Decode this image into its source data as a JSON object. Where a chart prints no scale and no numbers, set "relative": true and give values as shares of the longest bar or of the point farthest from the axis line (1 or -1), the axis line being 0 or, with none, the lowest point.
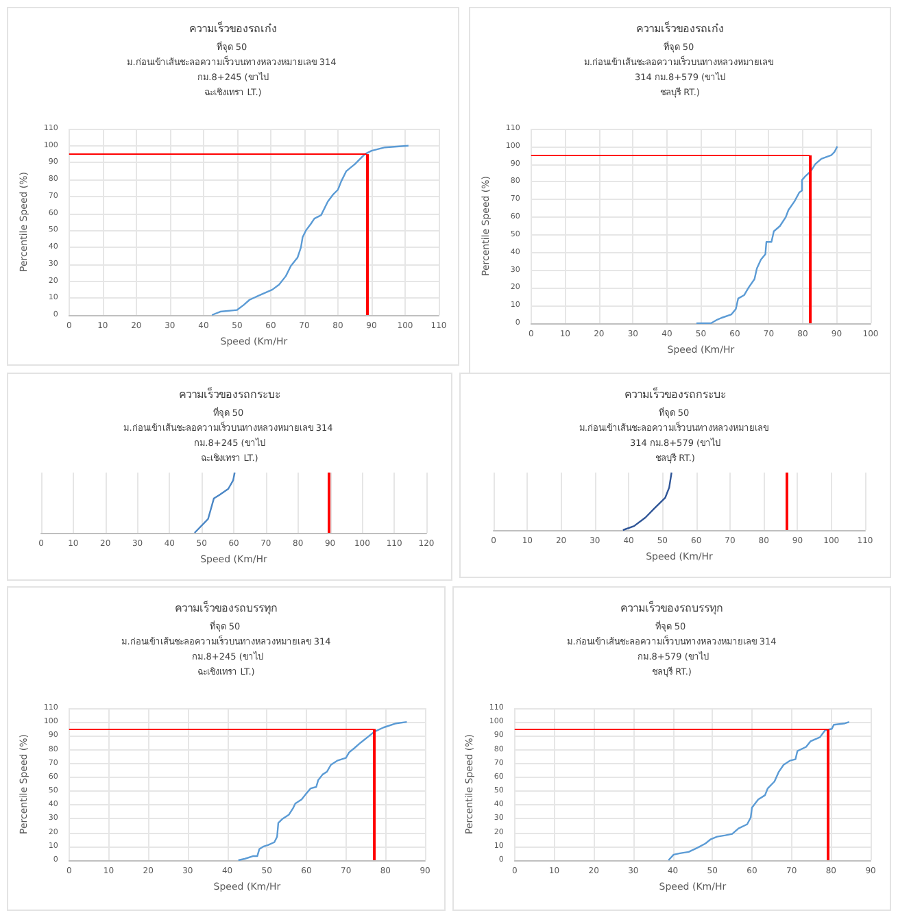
{
  "chart_data": [
    {
      "type": "line",
      "title": "ความเร็วของรถเก๋ง",
      "subtitle": "ที่จุด 50 ม.ก่อนเข้าเส้นชะลอความเร็วบนทางหลวงหมายเลข 314 กม.8+245 (ขาไป\nฉะเชิงเทรา LT.)",
      "xlabel": "Speed (Km/Hr",
      "ylabel": "Percentile Speed (%)",
      "xlim": [
        0,
        110
      ],
      "xticks": [
        0,
        10,
        20,
        30,
        40,
        50,
        60,
        70,
        80,
        90,
        100,
        110
      ],
      "ylim": [
        0,
        110
      ],
      "yticks": [
        0,
        10,
        20,
        30,
        40,
        50,
        60,
        70,
        80,
        90,
        100,
        110
      ],
      "grid": true,
      "marker": "none",
      "series": [
        {
          "color": "#5b9bd5",
          "x": [
            42.5,
            45,
            50,
            52,
            53.7,
            57,
            60.5,
            62.5,
            64.5,
            66,
            68,
            69,
            69.5,
            70.5,
            72,
            73,
            75,
            77,
            78.5,
            80,
            81,
            82.5,
            85,
            88,
            90,
            94,
            101
          ],
          "values": [
            0,
            2,
            3,
            6,
            9,
            12,
            15,
            18,
            23,
            29,
            34,
            40,
            46,
            50,
            54,
            57,
            59,
            67,
            71,
            74,
            79,
            85,
            89,
            95,
            97,
            99,
            100
          ]
        }
      ],
      "ref_lines": [
        {
          "axis": "y",
          "value": 95,
          "color": "#ff0000"
        },
        {
          "axis": "x",
          "value": 88.5,
          "color": "#ff0000"
        }
      ]
    },
    {
      "type": "line",
      "title": "ความเร็วของรถเก๋ง",
      "subtitle": "ที่จุด 50 ม.ก่อนเข้าเส้นชะลอความเร็วบนทางหลวงหมายเลข 314 กม.8+579 (ขาไป\nชลบุรี RT.)",
      "xlabel": "Speed (Km/Hr",
      "ylabel": "Percentile Speed (%)",
      "xlim": [
        0,
        100
      ],
      "xticks": [
        0,
        10,
        20,
        30,
        40,
        50,
        60,
        70,
        80,
        90,
        100
      ],
      "ylim": [
        0,
        110
      ],
      "yticks": [
        0,
        10,
        20,
        30,
        40,
        50,
        60,
        70,
        80,
        90,
        100,
        110
      ],
      "grid": true,
      "marker": "none",
      "series": [
        {
          "color": "#5b9bd5",
          "x": [
            48.7,
            53,
            54.8,
            56,
            59,
            60.3,
            61,
            62.8,
            64,
            65.8,
            66.5,
            67.7,
            69,
            69.3,
            70.8,
            71.5,
            73.3,
            75,
            75.8,
            77.6,
            79,
            79.8,
            79.8,
            80.7,
            82.4,
            83.7,
            85.5,
            88.4,
            89.4,
            90.2
          ],
          "values": [
            0,
            0,
            2,
            3,
            5,
            8,
            14,
            16,
            20,
            25,
            31,
            36,
            39,
            46,
            46,
            52,
            55,
            60,
            64,
            69,
            74,
            75,
            81,
            83,
            86,
            90,
            93,
            95,
            97,
            100
          ]
        }
      ],
      "ref_lines": [
        {
          "axis": "y",
          "value": 95,
          "color": "#ff0000"
        },
        {
          "axis": "x",
          "value": 82,
          "color": "#ff0000"
        }
      ]
    },
    {
      "type": "line",
      "title": "ความเร็วของรถกระบะ",
      "subtitle": "ที่จุด 50 ม.ก่อนเข้าเส้นชะลอความเร็วบนทางหลวงหมายเลข 314 กม.8+245 (ขาไป\nฉะเชิงเทรา LT.)",
      "xlabel": "Speed (Km/Hr",
      "relative": true,
      "xlim": [
        0,
        120
      ],
      "xticks": [
        0,
        10,
        20,
        30,
        40,
        50,
        60,
        70,
        80,
        90,
        100,
        110,
        120
      ],
      "grid": true,
      "marker": "none",
      "series": [
        {
          "color": "#4a86c5",
          "x": [
            47.8,
            52,
            53.8,
            55.6,
            58.3,
            59.8,
            60.3
          ],
          "values": [
            0,
            0.23,
            0.57,
            0.63,
            0.73,
            0.87,
            1
          ]
        }
      ],
      "ref_lines": [
        {
          "axis": "x",
          "value": 89.5,
          "color": "#ff0000"
        }
      ]
    },
    {
      "type": "line",
      "title": "ความเร็วของรถกระบะ",
      "subtitle": "ที่จุด 50 ม.ก่อนเข้าเส้นชะลอความเร็วบนทางหลวงหมายเลข 314 กม.8+579 (ขาไป\nชลบุรี RT.)",
      "xlabel": "Speed (Km/Hr",
      "relative": true,
      "xlim": [
        0,
        110
      ],
      "xticks": [
        0,
        10,
        20,
        30,
        40,
        50,
        60,
        70,
        80,
        90,
        100,
        110
      ],
      "grid": true,
      "marker": "none",
      "series": [
        {
          "color": "#2f5597",
          "x": [
            38.3,
            41.6,
            45,
            47.5,
            50.8,
            52,
            52.7
          ],
          "values": [
            0,
            0.07,
            0.22,
            0.37,
            0.56,
            0.74,
            1
          ]
        }
      ],
      "ref_lines": [
        {
          "axis": "x",
          "value": 86.6,
          "color": "#ff0000"
        }
      ]
    },
    {
      "type": "line",
      "title": "ความเร็วของรถบรรทุก",
      "subtitle": "ที่จุด 50 ม.ก่อนเข้าเส้นชะลอความเร็วบนทางหลวงหมายเลข 314 กม.8+245 (ขาไป\nฉะเชิงเทรา LT.)",
      "xlabel": "Speed (Km/Hr",
      "ylabel": "Percentile Speed (%)",
      "xlim": [
        0,
        90
      ],
      "xticks": [
        0,
        10,
        20,
        30,
        40,
        50,
        60,
        70,
        80,
        90
      ],
      "ylim": [
        0,
        110
      ],
      "yticks": [
        0,
        10,
        20,
        30,
        40,
        50,
        60,
        70,
        80,
        90,
        100,
        110
      ],
      "grid": true,
      "marker": "none",
      "series": [
        {
          "color": "#5b9bd5",
          "x": [
            42.8,
            44.4,
            46.6,
            47.6,
            48.1,
            49.2,
            50.3,
            51.9,
            52.6,
            52.9,
            54,
            55.6,
            56.7,
            57.2,
            58.8,
            59.9,
            61.1,
            62.5,
            63,
            64.1,
            65.2,
            66.2,
            67.8,
            70,
            70.8,
            72.1,
            73.7,
            75.9,
            77.2,
            79.5,
            82.7,
            85.4
          ],
          "values": [
            0,
            1,
            3,
            3,
            8,
            10,
            11,
            13,
            17,
            27,
            30,
            33,
            38,
            41,
            44,
            48,
            52,
            53,
            58,
            62,
            64,
            69,
            72,
            74,
            78,
            81,
            85,
            90,
            93,
            96,
            99,
            100
          ]
        }
      ],
      "ref_lines": [
        {
          "axis": "y",
          "value": 95,
          "color": "#ff0000"
        },
        {
          "axis": "x",
          "value": 77,
          "color": "#ff0000"
        }
      ]
    },
    {
      "type": "line",
      "title": "ความเร็วของรถบรรทุก",
      "subtitle": "ที่จุด 50 ม.ก่อนเข้าเส้นชะลอความเร็วบนทางหลวงหมายเลข 314 กม.8+579 (ขาไป\nชลบุรี RT.)",
      "xlabel": "Speed (Km/Hr",
      "ylabel": "Percentile Speed (%)",
      "xlim": [
        0,
        90
      ],
      "xticks": [
        0,
        10,
        20,
        30,
        40,
        50,
        60,
        70,
        80,
        90
      ],
      "ylim": [
        0,
        110
      ],
      "yticks": [
        0,
        10,
        20,
        30,
        40,
        50,
        60,
        70,
        80,
        90,
        100,
        110
      ],
      "grid": true,
      "marker": "none",
      "series": [
        {
          "color": "#5b9bd5",
          "x": [
            38.9,
            40.2,
            41.8,
            44,
            46.2,
            48.2,
            49.5,
            51.2,
            53.3,
            55,
            56.6,
            58.8,
            59.7,
            60,
            61.6,
            63.3,
            64,
            65.7,
            66.8,
            68,
            69.6,
            71,
            71.5,
            73.7,
            74.8,
            77.2,
            78.5,
            80.2,
            80.7,
            83.5,
            84.6
          ],
          "values": [
            0,
            4,
            5,
            6,
            9,
            12,
            15,
            17,
            18,
            19,
            23,
            26,
            31,
            38,
            44,
            47,
            52,
            57,
            64,
            69,
            72,
            73,
            79,
            82,
            86,
            89,
            94,
            95,
            98,
            99,
            100
          ]
        }
      ],
      "ref_lines": [
        {
          "axis": "y",
          "value": 95,
          "color": "#ff0000"
        },
        {
          "axis": "x",
          "value": 79,
          "color": "#ff0000"
        }
      ]
    }
  ]
}
